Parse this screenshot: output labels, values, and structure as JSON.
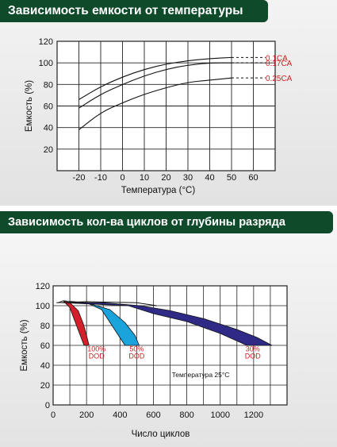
{
  "chart_data": [
    {
      "type": "line",
      "title": "Зависимость емкости от температуры",
      "xlabel": "Температура (°C)",
      "ylabel": "Емкость (%)",
      "x_ticks": [
        "-20",
        "-10",
        "0",
        "10",
        "20",
        "30",
        "40",
        "50",
        "60"
      ],
      "y_ticks": [
        "20",
        "40",
        "60",
        "80",
        "100",
        "120"
      ],
      "xlim": [
        -30,
        70
      ],
      "ylim": [
        0,
        120
      ],
      "grid": true,
      "series": [
        {
          "name": "0.1CA",
          "color": "#cc1f1f",
          "x": [
            -20,
            -10,
            0,
            10,
            20,
            30,
            40,
            50
          ],
          "y": [
            66,
            78,
            87,
            94,
            99,
            102,
            104,
            105
          ],
          "tail_y": 105
        },
        {
          "name": "0.17CA",
          "color": "#cc1f1f",
          "x": [
            -20,
            -10,
            0,
            10,
            20,
            30,
            40,
            50
          ],
          "y": [
            58,
            71,
            80,
            88,
            94,
            98,
            100,
            100
          ],
          "tail_y": 100
        },
        {
          "name": "0.25CA",
          "color": "#cc1f1f",
          "x": [
            -20,
            -10,
            0,
            10,
            20,
            30,
            40,
            50
          ],
          "y": [
            38,
            54,
            63,
            71,
            77,
            82,
            84,
            86
          ],
          "tail_y": 86
        }
      ]
    },
    {
      "type": "area",
      "title": "Зависимость кол-ва циклов от глубины разряда",
      "xlabel": "Число циклов",
      "ylabel": "Емкость (%)",
      "x_ticks": [
        "0",
        "200",
        "400",
        "600",
        "800",
        "1000",
        "1200"
      ],
      "y_ticks": [
        "0",
        "20",
        "40",
        "60",
        "80",
        "100",
        "120"
      ],
      "xlim": [
        0,
        1400
      ],
      "ylim": [
        0,
        120
      ],
      "grid": true,
      "annotation": "Температура 25°C",
      "series": [
        {
          "name": "100% DOD",
          "label_top": "100%",
          "label_bottom": "DOD",
          "color": "#d4202a",
          "upper": [
            [
              30,
              103
            ],
            [
              60,
              105
            ],
            [
              100,
              103
            ],
            [
              150,
              95
            ],
            [
              180,
              82
            ],
            [
              200,
              70
            ],
            [
              215,
              60
            ]
          ],
          "lower": [
            [
              185,
              60
            ],
            [
              140,
              80
            ],
            [
              100,
              98
            ],
            [
              60,
              105
            ]
          ],
          "label_at": [
            260,
            54
          ]
        },
        {
          "name": "50% DOD",
          "label_top": "50%",
          "label_bottom": "DOD",
          "color": "#1ba3dc",
          "upper": [
            [
              60,
              105
            ],
            [
              200,
              103
            ],
            [
              340,
              96
            ],
            [
              430,
              83
            ],
            [
              490,
              70
            ],
            [
              515,
              60
            ]
          ],
          "lower": [
            [
              430,
              60
            ],
            [
              360,
              78
            ],
            [
              290,
              96
            ],
            [
              200,
              103
            ]
          ],
          "label_at": [
            500,
            54
          ]
        },
        {
          "name": "30% DOD",
          "label_top": "30%",
          "label_bottom": "DOD",
          "color": "#2e2a86",
          "upper": [
            [
              50,
              103
            ],
            [
              300,
              103
            ],
            [
              520,
              100
            ],
            [
              700,
              95
            ],
            [
              900,
              87
            ],
            [
              1100,
              76
            ],
            [
              1220,
              68
            ],
            [
              1310,
              60
            ]
          ],
          "lower": [
            [
              1160,
              60
            ],
            [
              1000,
              72
            ],
            [
              800,
              84
            ],
            [
              600,
              92
            ],
            [
              450,
              100
            ]
          ],
          "label_at": [
            1195,
            54
          ]
        }
      ],
      "background_curve": [
        [
          20,
          103
        ],
        [
          200,
          104
        ],
        [
          500,
          103
        ],
        [
          620,
          100
        ]
      ]
    }
  ]
}
